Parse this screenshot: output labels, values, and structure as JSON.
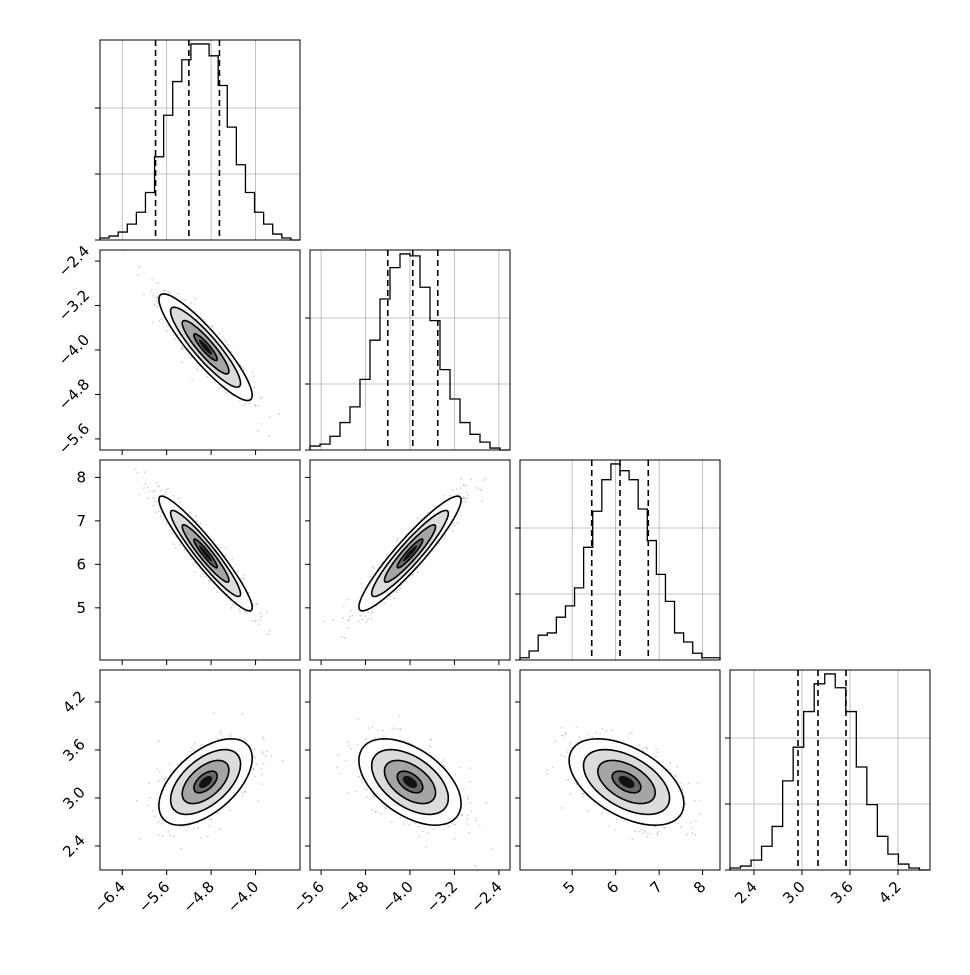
{
  "chart_data": {
    "type": "corner",
    "parameters": [
      {
        "range": [
          -6.8,
          -3.2
        ],
        "ticks": [
          -6.4,
          -5.6,
          -4.8,
          -4.0
        ],
        "tick_labels": [
          "−6.4",
          "−5.6",
          "−4.8",
          "−4.0"
        ],
        "quantiles": [
          -5.8,
          -5.2,
          -4.65
        ],
        "hist_counts": [
          1,
          2,
          4,
          8,
          14,
          24,
          42,
          63,
          80,
          91,
          99,
          99,
          93,
          78,
          57,
          38,
          24,
          14,
          8,
          3,
          1,
          0
        ]
      },
      {
        "range": [
          -5.8,
          -2.2
        ],
        "ticks": [
          -5.6,
          -4.8,
          -4.0,
          -3.2,
          -2.4
        ],
        "tick_labels": [
          "−5.6",
          "−4.8",
          "−4.0",
          "−3.2",
          "−2.4"
        ],
        "quantiles": [
          -4.4,
          -3.95,
          -3.5
        ],
        "hist_counts": [
          2,
          3,
          7,
          14,
          22,
          36,
          56,
          77,
          93,
          100,
          99,
          83,
          66,
          41,
          26,
          14,
          8,
          4,
          1,
          0
        ]
      },
      {
        "range": [
          3.8,
          8.4
        ],
        "ticks": [
          5,
          6,
          7,
          8
        ],
        "tick_labels": [
          "5",
          "6",
          "7",
          "8"
        ],
        "quantiles": [
          5.45,
          6.1,
          6.75
        ],
        "hist_counts": [
          1,
          4,
          11,
          12,
          19,
          24,
          32,
          50,
          66,
          80,
          87,
          84,
          80,
          67,
          53,
          38,
          26,
          12,
          8,
          3,
          1,
          1
        ]
      },
      {
        "range": [
          2.1,
          4.6
        ],
        "ticks": [
          2.4,
          3.0,
          3.6,
          4.2
        ],
        "tick_labels": [
          "2.4",
          "3.0",
          "3.6",
          "4.2"
        ],
        "quantiles": [
          2.95,
          3.2,
          3.55
        ],
        "hist_counts": [
          1,
          2,
          5,
          12,
          22,
          45,
          62,
          80,
          94,
          99,
          92,
          80,
          52,
          33,
          17,
          8,
          3,
          1,
          0
        ]
      }
    ],
    "pairs": [
      {
        "x": 0,
        "y": 1,
        "center": [
          -4.9,
          -3.95
        ],
        "sigma": [
          0.42,
          0.48
        ],
        "rho": -0.9
      },
      {
        "x": 0,
        "y": 2,
        "center": [
          -4.9,
          6.25
        ],
        "sigma": [
          0.42,
          0.66
        ],
        "rho": -0.94
      },
      {
        "x": 1,
        "y": 2,
        "center": [
          -4.0,
          6.25
        ],
        "sigma": [
          0.46,
          0.66
        ],
        "rho": 0.93
      },
      {
        "x": 0,
        "y": 3,
        "center": [
          -4.9,
          3.2
        ],
        "sigma": [
          0.42,
          0.27
        ],
        "rho": 0.55
      },
      {
        "x": 1,
        "y": 3,
        "center": [
          -4.0,
          3.2
        ],
        "sigma": [
          0.46,
          0.27
        ],
        "rho": -0.5
      },
      {
        "x": 2,
        "y": 3,
        "center": [
          6.25,
          3.2
        ],
        "sigma": [
          0.66,
          0.27
        ],
        "rho": -0.5
      }
    ],
    "contour_levels_sigma": [
      0.5,
      1.0,
      1.5,
      2.0
    ],
    "grid": true,
    "colors": {
      "line": "#000000",
      "grid": "#b0b0b0",
      "points": "#777777"
    }
  }
}
